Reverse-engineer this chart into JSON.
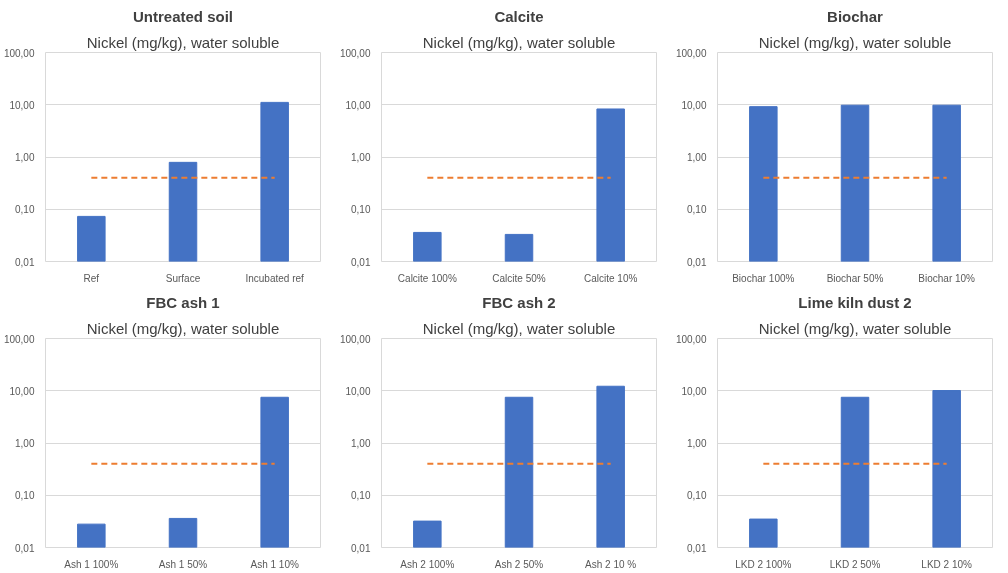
{
  "chart_data": [
    {
      "type": "bar",
      "title": "Untreated soil",
      "subtitle": "Nickel (mg/kg), water soluble",
      "categories": [
        "Ref",
        "Surface",
        "Incubated ref"
      ],
      "log": true,
      "grid": "y",
      "ylim": [
        0.01,
        100
      ],
      "yticks": [
        {
          "value": 0.01,
          "label": "0,01"
        },
        {
          "value": 0.1,
          "label": "0,10"
        },
        {
          "value": 1,
          "label": "1,00"
        },
        {
          "value": 10,
          "label": "10,00"
        },
        {
          "value": 100,
          "label": "100,00"
        }
      ],
      "series": [
        {
          "color": "#4472c4",
          "values": [
            0.073,
            0.79,
            11.1
          ]
        },
        {
          "type": "line",
          "color": "#ed7d31",
          "line_style": "dashed",
          "values": [
            0.4,
            0.4,
            0.4
          ]
        }
      ]
    },
    {
      "type": "bar",
      "title": "Calcite",
      "subtitle": "Nickel (mg/kg), water soluble",
      "categories": [
        "Calcite 100%",
        "Calcite 50%",
        "Calcite 10%"
      ],
      "log": true,
      "grid": "y",
      "ylim": [
        0.01,
        100
      ],
      "yticks": [
        {
          "value": 0.01,
          "label": "0,01"
        },
        {
          "value": 0.1,
          "label": "0,10"
        },
        {
          "value": 1,
          "label": "1,00"
        },
        {
          "value": 10,
          "label": "10,00"
        },
        {
          "value": 100,
          "label": "100,00"
        }
      ],
      "series": [
        {
          "color": "#4472c4",
          "values": [
            0.036,
            0.033,
            8.3
          ]
        },
        {
          "type": "line",
          "color": "#ed7d31",
          "line_style": "dashed",
          "values": [
            0.4,
            0.4,
            0.4
          ]
        }
      ]
    },
    {
      "type": "bar",
      "title": "Biochar",
      "subtitle": "Nickel (mg/kg), water soluble",
      "categories": [
        "Biochar 100%",
        "Biochar 50%",
        "Biochar 10%"
      ],
      "log": true,
      "grid": "y",
      "ylim": [
        0.01,
        100
      ],
      "yticks": [
        {
          "value": 0.01,
          "label": "0,01"
        },
        {
          "value": 0.1,
          "label": "0,10"
        },
        {
          "value": 1,
          "label": "1,00"
        },
        {
          "value": 10,
          "label": "10,00"
        },
        {
          "value": 100,
          "label": "100,00"
        }
      ],
      "series": [
        {
          "color": "#4472c4",
          "values": [
            9.2,
            9.8,
            9.8
          ]
        },
        {
          "type": "line",
          "color": "#ed7d31",
          "line_style": "dashed",
          "values": [
            0.4,
            0.4,
            0.4
          ]
        }
      ]
    },
    {
      "type": "bar",
      "title": "FBC ash 1",
      "subtitle": "Nickel (mg/kg), water soluble",
      "categories": [
        "Ash 1 100%",
        "Ash 1 50%",
        "Ash 1 10%"
      ],
      "log": true,
      "grid": "y",
      "ylim": [
        0.01,
        100
      ],
      "yticks": [
        {
          "value": 0.01,
          "label": "0,01"
        },
        {
          "value": 0.1,
          "label": "0,10"
        },
        {
          "value": 1,
          "label": "1,00"
        },
        {
          "value": 10,
          "label": "10,00"
        },
        {
          "value": 100,
          "label": "100,00"
        }
      ],
      "series": [
        {
          "color": "#4472c4",
          "values": [
            0.028,
            0.036,
            7.5
          ]
        },
        {
          "type": "line",
          "color": "#ed7d31",
          "line_style": "dashed",
          "values": [
            0.4,
            0.4,
            0.4
          ]
        }
      ]
    },
    {
      "type": "bar",
      "title": "FBC ash 2",
      "subtitle": "Nickel (mg/kg), water soluble",
      "categories": [
        "Ash 2 100%",
        "Ash 2 50%",
        "Ash 2 10 %"
      ],
      "log": true,
      "grid": "y",
      "ylim": [
        0.01,
        100
      ],
      "yticks": [
        {
          "value": 0.01,
          "label": "0,01"
        },
        {
          "value": 0.1,
          "label": "0,10"
        },
        {
          "value": 1,
          "label": "1,00"
        },
        {
          "value": 10,
          "label": "10,00"
        },
        {
          "value": 100,
          "label": "100,00"
        }
      ],
      "series": [
        {
          "color": "#4472c4",
          "values": [
            0.032,
            7.5,
            12.2
          ]
        },
        {
          "type": "line",
          "color": "#ed7d31",
          "line_style": "dashed",
          "values": [
            0.4,
            0.4,
            0.4
          ]
        }
      ]
    },
    {
      "type": "bar",
      "title": "Lime kiln dust 2",
      "subtitle": "Nickel (mg/kg), water soluble",
      "categories": [
        "LKD 2 100%",
        "LKD 2 50%",
        "LKD 2 10%"
      ],
      "log": true,
      "grid": "y",
      "ylim": [
        0.01,
        100
      ],
      "yticks": [
        {
          "value": 0.01,
          "label": "0,01"
        },
        {
          "value": 0.1,
          "label": "0,10"
        },
        {
          "value": 1,
          "label": "1,00"
        },
        {
          "value": 10,
          "label": "10,00"
        },
        {
          "value": 100,
          "label": "100,00"
        }
      ],
      "series": [
        {
          "color": "#4472c4",
          "values": [
            0.035,
            7.5,
            10.1
          ]
        },
        {
          "type": "line",
          "color": "#ed7d31",
          "line_style": "dashed",
          "values": [
            0.4,
            0.4,
            0.4
          ]
        }
      ]
    }
  ]
}
